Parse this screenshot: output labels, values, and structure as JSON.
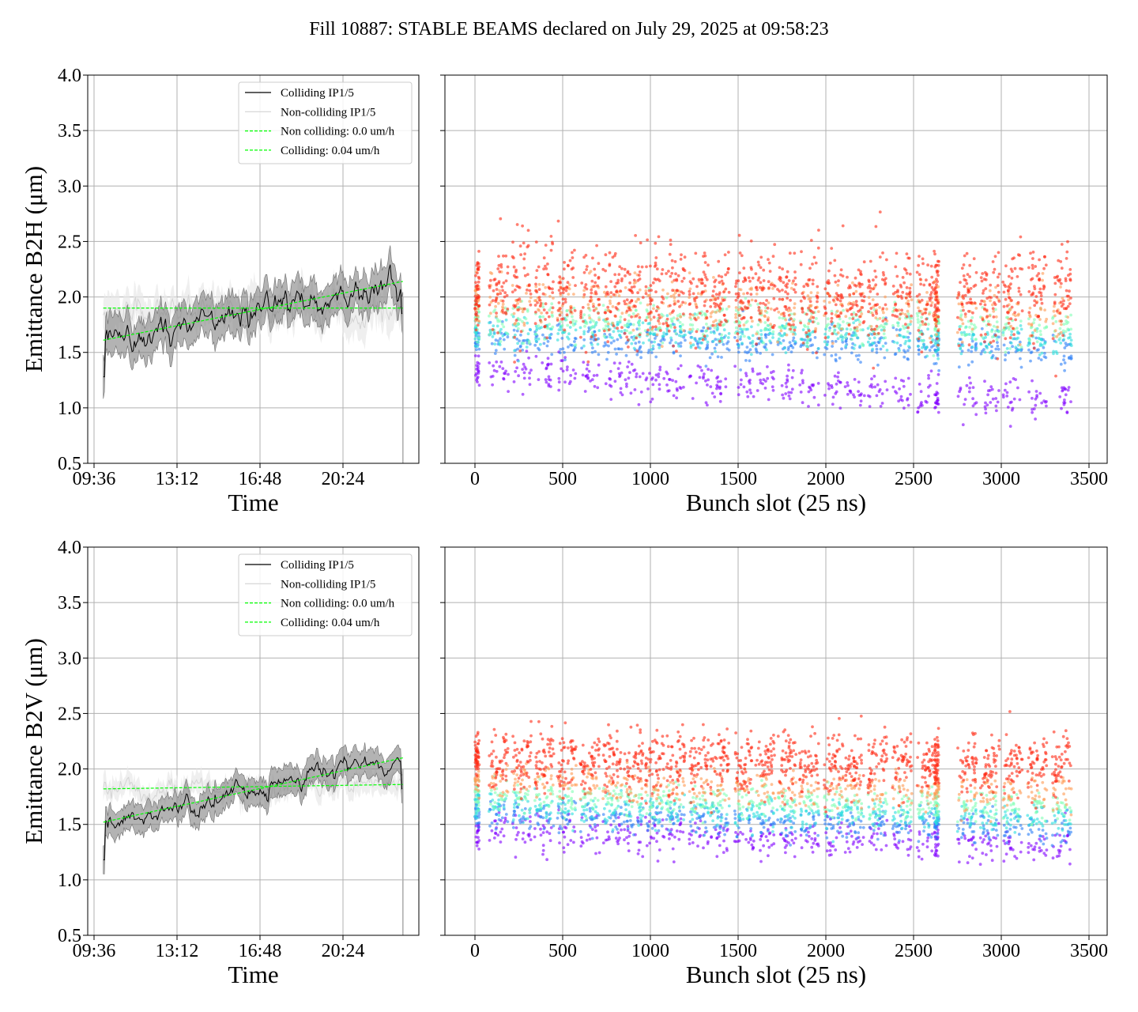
{
  "title": "Fill 10887: STABLE BEAMS declared on July 29, 2025 at 09:58:23",
  "colors": {
    "colliding": "#000000",
    "non_colliding": "#d3d3d3",
    "band": "#808080",
    "fit": "#00ff00",
    "grid": "#b0b0b0"
  },
  "chart_data": [
    {
      "type": "line",
      "panel": "B2H time",
      "ylabel": "Emittance B2H (μm)",
      "xlabel": "Time",
      "ylim": [
        0.5,
        4.0
      ],
      "yticks": [
        "0.5",
        "1.0",
        "1.5",
        "2.0",
        "2.5",
        "3.0",
        "3.5",
        "4.0"
      ],
      "xticks": [
        "09:36",
        "13:12",
        "16:48",
        "20:24"
      ],
      "x_hours_range": [
        10.0,
        23.0
      ],
      "legend": [
        "Colliding IP1/5",
        "Non-colliding IP1/5",
        "Non colliding: 0.0 um/h",
        "Colliding: 0.04 um/h"
      ],
      "legend_position": "top-right",
      "series": [
        {
          "name": "Colliding IP1/5",
          "start": 1.6,
          "end": 2.15,
          "noise": 0.08,
          "spread": 0.17
        },
        {
          "name": "Non-colliding IP1/5",
          "start": 1.88,
          "end": 1.88,
          "noise": 0.1
        }
      ],
      "fits": [
        {
          "name": "Non colliding: 0.0 um/h",
          "start": 1.9,
          "end": 1.9
        },
        {
          "name": "Colliding: 0.04 um/h",
          "start": 1.61,
          "end": 2.14
        }
      ]
    },
    {
      "type": "scatter",
      "panel": "B2H bunch",
      "xlabel": "Bunch slot (25 ns)",
      "xlim": [
        -170,
        3600
      ],
      "ylim": [
        0.5,
        4.0
      ],
      "xticks": [
        "0",
        "500",
        "1000",
        "1500",
        "2000",
        "2500",
        "3000",
        "3500"
      ],
      "yticks": [
        "0.5",
        "1.0",
        "1.5",
        "2.0",
        "2.5",
        "3.0",
        "3.5",
        "4.0"
      ],
      "train_starts": [
        0,
        80,
        210,
        340,
        470,
        600,
        730,
        850,
        970,
        1090,
        1220,
        1340,
        1480,
        1600,
        1720,
        1850,
        1990,
        2110,
        2240,
        2380,
        2520,
        2620,
        2750,
        2880,
        3010,
        3150,
        3290
      ],
      "bands": [
        {
          "color": "#8000ff",
          "mean_start": 1.35,
          "mean_end": 1.05,
          "sd": 0.09
        },
        {
          "color": "#2c7ef7",
          "mean_start": 1.62,
          "mean_end": 1.52,
          "sd": 0.08
        },
        {
          "color": "#2adddd",
          "mean_start": 1.7,
          "mean_end": 1.6,
          "sd": 0.07
        },
        {
          "color": "#80ffb4",
          "mean_start": 1.82,
          "mean_end": 1.72,
          "sd": 0.09
        },
        {
          "color": "#ff9a52",
          "mean_start": 1.98,
          "mean_end": 1.85,
          "sd": 0.12
        },
        {
          "color": "#ff2a14",
          "mean_start": 2.0,
          "mean_end": 1.95,
          "sd": 0.2
        }
      ]
    },
    {
      "type": "line",
      "panel": "B2V time",
      "ylabel": "Emittance B2V (μm)",
      "xlabel": "Time",
      "ylim": [
        0.5,
        4.0
      ],
      "yticks": [
        "0.5",
        "1.0",
        "1.5",
        "2.0",
        "2.5",
        "3.0",
        "3.5",
        "4.0"
      ],
      "xticks": [
        "09:36",
        "13:12",
        "16:48",
        "20:24"
      ],
      "x_hours_range": [
        10.0,
        23.0
      ],
      "legend": [
        "Colliding IP1/5",
        "Non-colliding IP1/5",
        "Non colliding: 0.0 um/h",
        "Colliding: 0.04 um/h"
      ],
      "legend_position": "top-right",
      "series": [
        {
          "name": "Colliding IP1/5",
          "start": 1.5,
          "end": 2.12,
          "noise": 0.05,
          "spread": 0.12
        },
        {
          "name": "Non-colliding IP1/5",
          "start": 1.8,
          "end": 1.86,
          "noise": 0.06
        }
      ],
      "fits": [
        {
          "name": "Non colliding: 0.0 um/h",
          "start": 1.82,
          "end": 1.86
        },
        {
          "name": "Colliding: 0.04 um/h",
          "start": 1.52,
          "end": 2.1
        }
      ]
    },
    {
      "type": "scatter",
      "panel": "B2V bunch",
      "xlabel": "Bunch slot (25 ns)",
      "xlim": [
        -170,
        3600
      ],
      "ylim": [
        0.5,
        4.0
      ],
      "xticks": [
        "0",
        "500",
        "1000",
        "1500",
        "2000",
        "2500",
        "3000",
        "3500"
      ],
      "yticks": [
        "0.5",
        "1.0",
        "1.5",
        "2.0",
        "2.5",
        "3.0",
        "3.5",
        "4.0"
      ],
      "train_starts": [
        0,
        80,
        210,
        340,
        470,
        600,
        730,
        850,
        970,
        1090,
        1220,
        1340,
        1480,
        1600,
        1720,
        1850,
        1990,
        2110,
        2240,
        2380,
        2520,
        2620,
        2750,
        2880,
        3010,
        3150,
        3290
      ],
      "bands": [
        {
          "color": "#8000ff",
          "mean_start": 1.45,
          "mean_end": 1.3,
          "sd": 0.08
        },
        {
          "color": "#2c7ef7",
          "mean_start": 1.58,
          "mean_end": 1.45,
          "sd": 0.07
        },
        {
          "color": "#2adddd",
          "mean_start": 1.66,
          "mean_end": 1.55,
          "sd": 0.07
        },
        {
          "color": "#80ffb4",
          "mean_start": 1.75,
          "mean_end": 1.65,
          "sd": 0.07
        },
        {
          "color": "#ff9a52",
          "mean_start": 1.88,
          "mean_end": 1.78,
          "sd": 0.08
        },
        {
          "color": "#ff2a14",
          "mean_start": 2.02,
          "mean_end": 1.98,
          "sd": 0.13
        }
      ]
    }
  ]
}
